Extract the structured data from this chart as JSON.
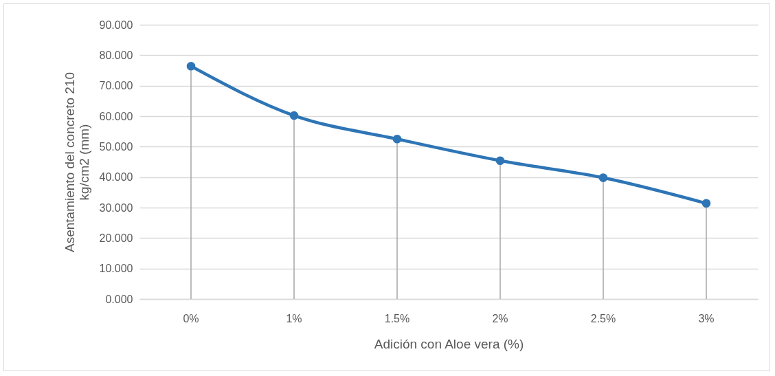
{
  "chart_data": {
    "type": "line",
    "xlabel": "Adición con Aloe vera (%)",
    "ylabel": "Asentamiento del concreto 210 kg/cm2 (mm)",
    "categories": [
      "0%",
      "1%",
      "1.5%",
      "2%",
      "2.5%",
      "3%"
    ],
    "series": [
      {
        "color": "#2e75b6",
        "values": [
          76.4,
          60.2,
          52.5,
          45.4,
          39.8,
          31.4
        ]
      },
      {
        "type": "lollipop",
        "color": "#2e75b6",
        "values": [
          76.4,
          60.2,
          52.5,
          45.4,
          39.8,
          31.4
        ]
      }
    ],
    "ylim": [
      0,
      90
    ],
    "yticks": [
      {
        "value": 0,
        "label": "0.000"
      },
      {
        "value": 10,
        "label": "10.000"
      },
      {
        "value": 20,
        "label": "20.000"
      },
      {
        "value": 30,
        "label": "30.000"
      },
      {
        "value": 40,
        "label": "40.000"
      },
      {
        "value": 50,
        "label": "50.000"
      },
      {
        "value": 60,
        "label": "60.000"
      },
      {
        "value": 70,
        "label": "70.000"
      },
      {
        "value": 80,
        "label": "80.000"
      },
      {
        "value": 90,
        "label": "90.000"
      }
    ],
    "grid": "y",
    "legend": false
  }
}
